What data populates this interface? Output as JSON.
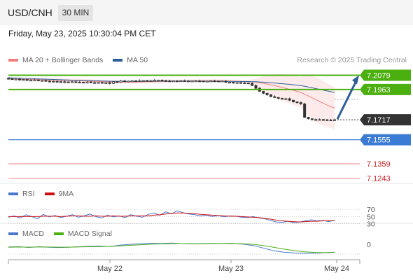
{
  "header": {
    "pair": "USD/CNH",
    "interval": "30 MIN"
  },
  "timestamp": "Friday, May 23, 2025 10:30:04 PM CET",
  "copyright": "Research © 2025 Trading Central",
  "colors": {
    "bollinger": "#f08080",
    "ma50": "#2c5f96",
    "resistance": "#4caf10",
    "support": "#3a7bd5",
    "rsi": "#4a78d0",
    "rsi_ma": "#cc1111",
    "macd": "#4a78d0",
    "macd_signal": "#4caf10",
    "arrow": "#2c5f96"
  },
  "legend": {
    "main": [
      {
        "label": "MA 20 + Bollinger Bands",
        "color": "#f08080"
      },
      {
        "label": "MA 50",
        "color": "#2c5f96"
      }
    ],
    "rsi": [
      {
        "label": "RSI",
        "color": "#4a78d0"
      },
      {
        "label": "9MA",
        "color": "#cc1111"
      }
    ],
    "macd": [
      {
        "label": "MACD",
        "color": "#4a78d0"
      },
      {
        "label": "MACD Signal",
        "color": "#4caf10"
      }
    ]
  },
  "chart_data": [
    {
      "type": "candlestick",
      "title": "USD/CNH",
      "interval": "30 MIN",
      "ylim": [
        7.12,
        7.215
      ],
      "x_ticks": [
        "May 22",
        "May 23",
        "May 24"
      ],
      "close_series": [
        7.2051,
        7.2046,
        7.2048,
        7.2042,
        7.2044,
        7.2038,
        7.2039,
        7.2041,
        7.2035,
        7.2036,
        7.2031,
        7.203,
        7.2029,
        7.2027,
        7.2026,
        7.2025,
        7.2024,
        7.2026,
        7.2023,
        7.2022,
        7.2021,
        7.2024,
        7.2019,
        7.2018,
        7.202,
        7.2017,
        7.2018,
        7.2012,
        7.2026,
        7.2024,
        7.2033,
        7.203,
        7.2031,
        7.2033,
        7.2032,
        7.2035,
        7.2036,
        7.2034,
        7.2035,
        7.2038,
        7.2039,
        7.2035,
        7.2033,
        7.2031,
        7.2033,
        7.2032,
        7.2034,
        7.2033,
        7.2031,
        7.2032,
        7.2033,
        7.2032,
        7.2031,
        7.2031,
        7.2033,
        7.2032,
        7.2031,
        7.2032,
        7.2021,
        7.2022,
        7.2018,
        7.2019,
        7.2017,
        7.2016,
        7.2014,
        7.1996,
        7.1973,
        7.1948,
        7.1932,
        7.192,
        7.1905,
        7.1898,
        7.1891,
        7.1885,
        7.1888,
        7.1876,
        7.1862,
        7.1857,
        7.1846,
        7.1737,
        7.1725,
        7.1719,
        7.1717,
        7.1719,
        7.1717,
        7.1716,
        7.1714,
        7.1717
      ],
      "key_levels": [
        {
          "value": "7.2079",
          "kind": "resistance"
        },
        {
          "value": "7.1963",
          "kind": "resistance"
        },
        {
          "value": "7.1717",
          "kind": "last"
        },
        {
          "value": "7.1555",
          "kind": "support"
        },
        {
          "value": "7.1359",
          "kind": "target"
        },
        {
          "value": "7.1243",
          "kind": "target"
        }
      ],
      "projection": {
        "from": 7.1717,
        "to": 7.2079,
        "direction": "up"
      }
    },
    {
      "type": "line",
      "title": "RSI",
      "ylim": [
        0,
        100
      ],
      "levels": [
        70,
        50,
        30
      ],
      "series": [
        {
          "name": "RSI",
          "shape": [
            48,
            52,
            46,
            55,
            50,
            44,
            56,
            49,
            53,
            47,
            51,
            55,
            48,
            52,
            57,
            50,
            46,
            54,
            49,
            52,
            47,
            55,
            51,
            48,
            56,
            60,
            54,
            63,
            58,
            66,
            61,
            57,
            55,
            52,
            54,
            50,
            53,
            49,
            52,
            51,
            48,
            47,
            50,
            46,
            44,
            39,
            35,
            34,
            37,
            33,
            35,
            38,
            41,
            38,
            39,
            36,
            40
          ]
        },
        {
          "name": "9MA",
          "shape": [
            50,
            50,
            50,
            50,
            50,
            50,
            51,
            51,
            51,
            50,
            51,
            52,
            52,
            51,
            51,
            52,
            51,
            51,
            52,
            51,
            51,
            52,
            52,
            52,
            52,
            54,
            55,
            57,
            59,
            60,
            60,
            59,
            58,
            56,
            55,
            54,
            53,
            52,
            51,
            51,
            50,
            49,
            48,
            47,
            45,
            43,
            40,
            38,
            37,
            36,
            35,
            36,
            37,
            37,
            38,
            38,
            39
          ]
        }
      ]
    },
    {
      "type": "line",
      "title": "MACD",
      "levels": [
        0
      ],
      "series": [
        {
          "name": "MACD",
          "shape": [
            0.22,
            0.26,
            0.18,
            0.25,
            0.2,
            0.17,
            0.21,
            0.26,
            0.29,
            0.32,
            0.28,
            0.42,
            0.5,
            0.55,
            0.6,
            0.58,
            0.62,
            0.57,
            0.55,
            0.57,
            0.59,
            0.58,
            0.6,
            0.52,
            0.38,
            0.12,
            -0.15,
            -0.3,
            -0.38,
            -0.42,
            -0.4,
            -0.36,
            -0.3
          ]
        },
        {
          "name": "MACD Signal",
          "shape": [
            0.2,
            0.22,
            0.21,
            0.23,
            0.22,
            0.21,
            0.21,
            0.23,
            0.25,
            0.27,
            0.29,
            0.34,
            0.4,
            0.46,
            0.51,
            0.54,
            0.57,
            0.57,
            0.56,
            0.56,
            0.57,
            0.57,
            0.58,
            0.56,
            0.5,
            0.38,
            0.2,
            0.02,
            -0.14,
            -0.26,
            -0.33,
            -0.35,
            -0.33
          ]
        }
      ]
    }
  ]
}
